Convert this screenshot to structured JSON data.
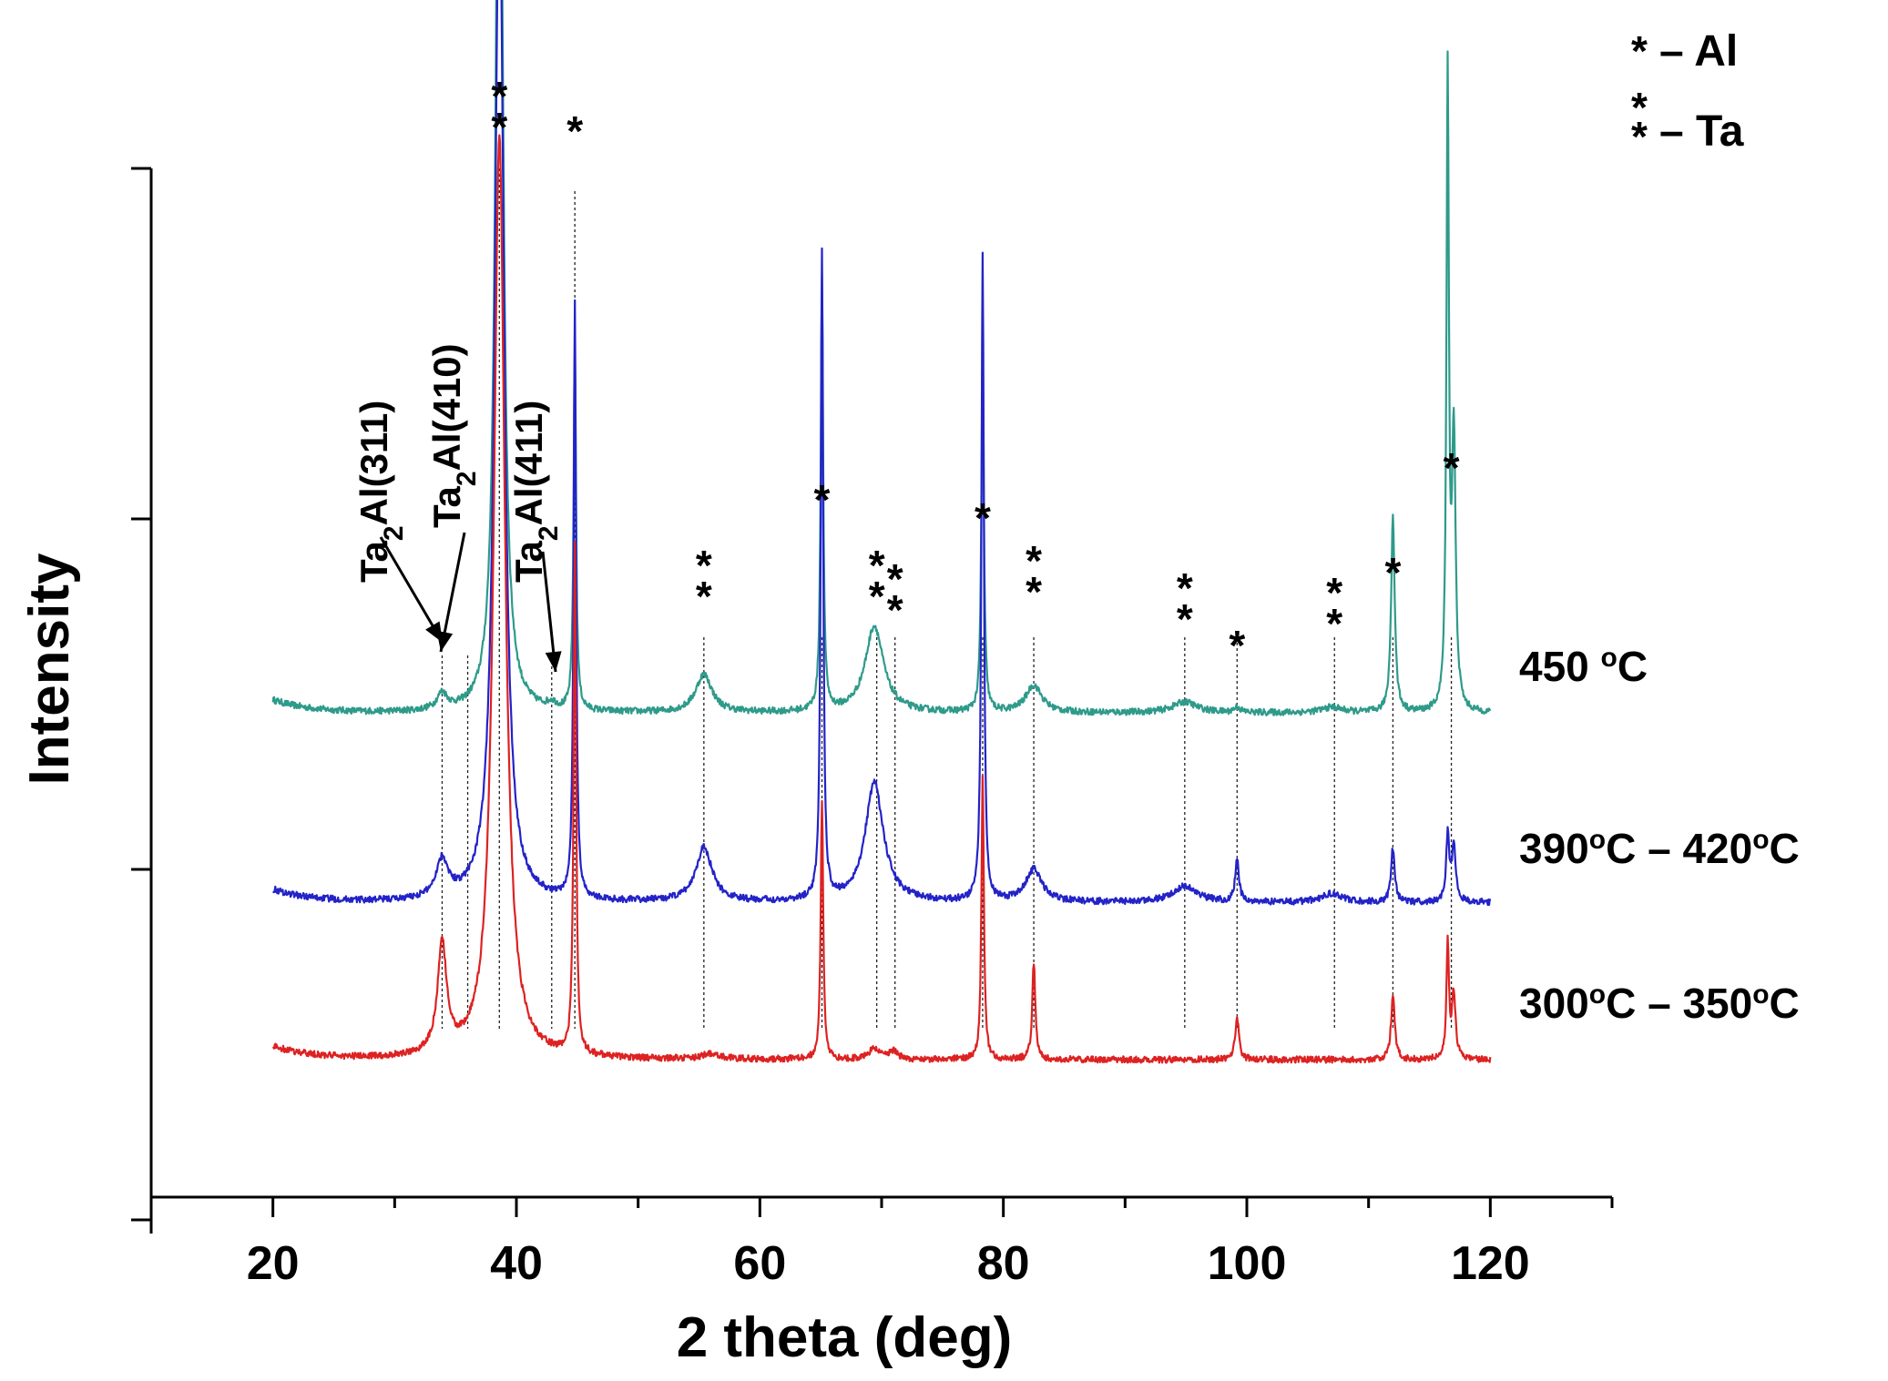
{
  "chart_data": {
    "type": "line",
    "title": "",
    "xlabel": "2 theta (deg)",
    "ylabel": "Intensity",
    "xlim": [
      10,
      130
    ],
    "x_ticks": [
      20,
      40,
      60,
      80,
      100,
      120
    ],
    "x_range": [
      20,
      120
    ],
    "y_ticks_shown_without_labels": true,
    "grid": false,
    "series": [
      {
        "name": "450 °C",
        "label_main": "450 ",
        "label_super": "o",
        "label_end": "C",
        "color": "#2e9a8a",
        "baseline": 0.43,
        "peaks": [
          [
            33.9,
            0.015,
            0.5
          ],
          [
            38.6,
            1.0,
            0.35
          ],
          [
            42.9,
            0.005,
            0.4
          ],
          [
            44.8,
            0.34,
            0.12
          ],
          [
            55.4,
            0.035,
            0.8
          ],
          [
            65.1,
            0.4,
            0.12
          ],
          [
            69.4,
            0.08,
            0.9
          ],
          [
            78.3,
            0.34,
            0.12
          ],
          [
            82.5,
            0.025,
            0.8
          ],
          [
            94.9,
            0.01,
            1.2
          ],
          [
            99.2,
            0.005,
            0.3
          ],
          [
            107.0,
            0.005,
            1.0
          ],
          [
            112.0,
            0.18,
            0.18
          ],
          [
            116.5,
            0.58,
            0.12
          ],
          [
            117.0,
            0.25,
            0.18
          ]
        ]
      },
      {
        "name": "390°C – 420°C",
        "label_main": "390",
        "label_super": "o",
        "label_end": "C – 420",
        "label_super2": "o",
        "label_end2": "C",
        "color": "#2323c8",
        "baseline": 0.255,
        "peaks": [
          [
            33.9,
            0.035,
            0.6
          ],
          [
            38.6,
            0.96,
            0.45
          ],
          [
            44.8,
            0.55,
            0.12
          ],
          [
            55.4,
            0.05,
            0.8
          ],
          [
            65.1,
            0.6,
            0.12
          ],
          [
            69.4,
            0.11,
            0.9
          ],
          [
            78.3,
            0.6,
            0.12
          ],
          [
            82.5,
            0.03,
            0.8
          ],
          [
            94.9,
            0.015,
            1.2
          ],
          [
            99.2,
            0.04,
            0.18
          ],
          [
            107.0,
            0.008,
            1.0
          ],
          [
            112.0,
            0.05,
            0.18
          ],
          [
            116.5,
            0.06,
            0.15
          ],
          [
            117.0,
            0.05,
            0.2
          ]
        ]
      },
      {
        "name": "300°C – 350°C",
        "label_main": "300",
        "label_super": "o",
        "label_end": "C – 350",
        "label_super2": "o",
        "label_end2": "C",
        "color": "#dd2222",
        "baseline": 0.11,
        "peaks": [
          [
            33.9,
            0.1,
            0.45
          ],
          [
            38.6,
            0.85,
            0.55
          ],
          [
            44.8,
            0.47,
            0.12
          ],
          [
            56.0,
            0.005,
            0.8
          ],
          [
            65.1,
            0.24,
            0.12
          ],
          [
            69.4,
            0.01,
            0.5
          ],
          [
            71.0,
            0.008,
            0.4
          ],
          [
            78.3,
            0.26,
            0.12
          ],
          [
            82.5,
            0.09,
            0.15
          ],
          [
            99.2,
            0.04,
            0.18
          ],
          [
            112.0,
            0.06,
            0.18
          ],
          [
            116.5,
            0.11,
            0.12
          ],
          [
            117.0,
            0.06,
            0.18
          ]
        ]
      }
    ],
    "markers": [
      {
        "x": 38.6,
        "symbol": "**"
      },
      {
        "x": 44.8,
        "symbol": "*"
      },
      {
        "x": 55.4,
        "symbol": "**"
      },
      {
        "x": 65.1,
        "symbol": "*"
      },
      {
        "x": 69.6,
        "symbol": "**"
      },
      {
        "x": 71.1,
        "symbol": "**"
      },
      {
        "x": 78.3,
        "symbol": "*"
      },
      {
        "x": 82.5,
        "symbol": "**"
      },
      {
        "x": 94.9,
        "symbol": "**"
      },
      {
        "x": 99.2,
        "symbol": "*"
      },
      {
        "x": 107.2,
        "symbol": "**"
      },
      {
        "x": 112.0,
        "symbol": "*"
      },
      {
        "x": 116.8,
        "symbol": "*"
      }
    ],
    "annotations": [
      {
        "main": "Ta",
        "sub": "2",
        "rest": "Al(311)",
        "x": 33.9
      },
      {
        "main": "Ta",
        "sub": "2",
        "rest": "Al(410)",
        "x": 36.0
      },
      {
        "main": "Ta",
        "sub": "2",
        "rest": "Al(411)",
        "x": 42.9
      }
    ],
    "legend": [
      {
        "symbol": "*",
        "text": "– Al"
      },
      {
        "symbol": "**",
        "text": "– Ta"
      }
    ]
  }
}
